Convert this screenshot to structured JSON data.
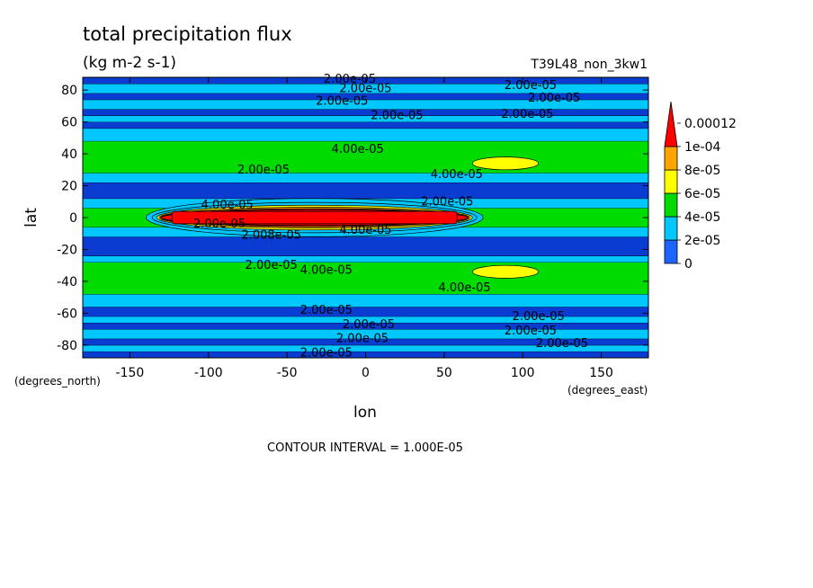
{
  "chart_data": {
    "type": "heatmap",
    "title": "total precipitation flux",
    "units": "(kg m-2 s-1)",
    "run_label": "T39L48_non_3kw1",
    "xlabel": "lon",
    "ylabel": "lat",
    "x_unit_label": "(degrees_east)",
    "y_unit_label": "(degrees_north)",
    "xlim": [
      -180,
      180
    ],
    "ylim": [
      -88,
      88
    ],
    "x_ticks": [
      -150,
      -100,
      -50,
      0,
      50,
      100,
      150
    ],
    "x_tick_labels": [
      "-150",
      "-100",
      "-50",
      "0",
      "50",
      "100",
      "150"
    ],
    "y_ticks": [
      -80,
      -60,
      -40,
      -20,
      0,
      20,
      40,
      60,
      80
    ],
    "y_tick_labels": [
      "-80",
      "-60",
      "-40",
      "-20",
      "0",
      "20",
      "40",
      "60",
      "80"
    ],
    "contour_interval_text": "CONTOUR INTERVAL = 1.000E-05",
    "legend": {
      "placement": "right",
      "levels": [
        "0",
        "2e-05",
        "4e-05",
        "6e-05",
        "8e-05",
        "1e-04",
        "0.00012"
      ],
      "colors": [
        "#1e64ff",
        "#00c8ff",
        "#00dc00",
        "#ffff00",
        "#ffa500",
        "#ff0000"
      ]
    },
    "background_color": "#0a3cd2",
    "zonal_bands": [
      {
        "lat": [
          -88,
          -84
        ],
        "value": 1e-05
      },
      {
        "lat": [
          -84,
          -80
        ],
        "value": 2e-05
      },
      {
        "lat": [
          -80,
          -76
        ],
        "value": 1e-05
      },
      {
        "lat": [
          -76,
          -70
        ],
        "value": 2.2e-05
      },
      {
        "lat": [
          -70,
          -66
        ],
        "value": 1.3e-05
      },
      {
        "lat": [
          -66,
          -62
        ],
        "value": 2.2e-05
      },
      {
        "lat": [
          -62,
          -56
        ],
        "value": 1.5e-05
      },
      {
        "lat": [
          -56,
          -48
        ],
        "value": 2.6e-05
      },
      {
        "lat": [
          -48,
          -28
        ],
        "value": 4.4e-05
      },
      {
        "lat": [
          -28,
          -24
        ],
        "value": 2.5e-05
      },
      {
        "lat": [
          -24,
          -12
        ],
        "value": 1.2e-05
      },
      {
        "lat": [
          -12,
          -6
        ],
        "value": 2.5e-05
      },
      {
        "lat": [
          -6,
          6
        ],
        "value": 4.5e-05
      },
      {
        "lat": [
          6,
          12
        ],
        "value": 2.5e-05
      },
      {
        "lat": [
          12,
          22
        ],
        "value": 1.2e-05
      },
      {
        "lat": [
          22,
          28
        ],
        "value": 2.5e-05
      },
      {
        "lat": [
          28,
          48
        ],
        "value": 4.4e-05
      },
      {
        "lat": [
          48,
          56
        ],
        "value": 2.6e-05
      },
      {
        "lat": [
          56,
          60
        ],
        "value": 1.5e-05
      },
      {
        "lat": [
          60,
          64
        ],
        "value": 2.2e-05
      },
      {
        "lat": [
          64,
          68
        ],
        "value": 1.3e-05
      },
      {
        "lat": [
          68,
          74
        ],
        "value": 2.2e-05
      },
      {
        "lat": [
          74,
          78
        ],
        "value": 1e-05
      },
      {
        "lat": [
          78,
          84
        ],
        "value": 2e-05
      },
      {
        "lat": [
          84,
          88
        ],
        "value": 1e-05
      }
    ],
    "features": [
      {
        "name": "equatorial-maximum",
        "lon": [
          -130,
          65
        ],
        "lat": [
          -5,
          5
        ],
        "value": 0.00012
      },
      {
        "name": "nh-midlat-maximum",
        "lon": [
          68,
          110
        ],
        "lat": [
          30,
          38
        ],
        "value": 6e-05
      },
      {
        "name": "sh-midlat-maximum",
        "lon": [
          68,
          110
        ],
        "lat": [
          -38,
          -30
        ],
        "value": 6e-05
      }
    ],
    "contour_labels": [
      {
        "text": "2.00e-05",
        "lon": -10,
        "lat": 87
      },
      {
        "text": "2.00e-05",
        "lon": 0,
        "lat": 81
      },
      {
        "text": "2.00e-05",
        "lon": -15,
        "lat": 73
      },
      {
        "text": "2.00e-05",
        "lon": 20,
        "lat": 64
      },
      {
        "text": "2.00e-05",
        "lon": 105,
        "lat": 83
      },
      {
        "text": "2.00e-05",
        "lon": 120,
        "lat": 75
      },
      {
        "text": "2.00e-05",
        "lon": 103,
        "lat": 65
      },
      {
        "text": "4.00e-05",
        "lon": -5,
        "lat": 43
      },
      {
        "text": "2.00e-05",
        "lon": -65,
        "lat": 30
      },
      {
        "text": "4.00e-05",
        "lon": 58,
        "lat": 27
      },
      {
        "text": "2.00e-05",
        "lon": 52,
        "lat": 10
      },
      {
        "text": "4.00e-05",
        "lon": -88,
        "lat": 8
      },
      {
        "text": "2.00e-05",
        "lon": -93,
        "lat": -4
      },
      {
        "text": "2.008e-05",
        "lon": -60,
        "lat": -11
      },
      {
        "text": "4.00e-05",
        "lon": 0,
        "lat": -8
      },
      {
        "text": "2.00e-05",
        "lon": -60,
        "lat": -30
      },
      {
        "text": "4.00e-05",
        "lon": -25,
        "lat": -33
      },
      {
        "text": "4.00e-05",
        "lon": 63,
        "lat": -44
      },
      {
        "text": "2.00e-05",
        "lon": -25,
        "lat": -58
      },
      {
        "text": "2.00e-05",
        "lon": 2,
        "lat": -67
      },
      {
        "text": "2.00e-05",
        "lon": -2,
        "lat": -76
      },
      {
        "text": "2.00e-05",
        "lon": -25,
        "lat": -85
      },
      {
        "text": "2.00e-05",
        "lon": 110,
        "lat": -62
      },
      {
        "text": "2.00e-05",
        "lon": 105,
        "lat": -71
      },
      {
        "text": "2.00e-05",
        "lon": 125,
        "lat": -79
      }
    ]
  }
}
